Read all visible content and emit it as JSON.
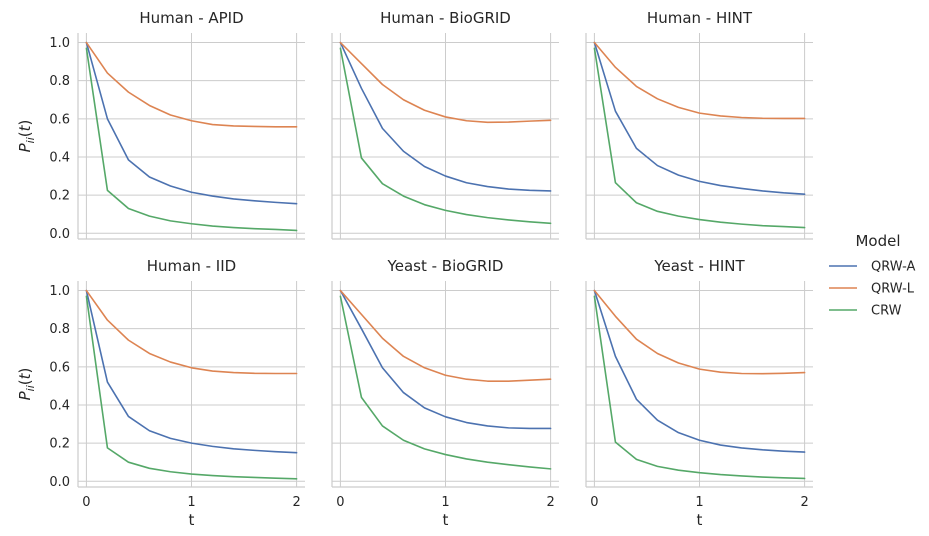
{
  "chart_data": {
    "type": "line",
    "legend": {
      "title": "Model",
      "placement": "right"
    },
    "xlabel": "t",
    "ylabel": "P_ii(t)",
    "xticks": [
      0,
      1,
      2
    ],
    "yticks": [
      "0.0",
      "0.2",
      "0.4",
      "0.6",
      "0.8",
      "1.0"
    ],
    "xlim": [
      -0.08,
      2.08
    ],
    "ylim": [
      -0.03,
      1.05
    ],
    "grid": true,
    "x": [
      0,
      0.2,
      0.4,
      0.6,
      0.8,
      1.0,
      1.2,
      1.4,
      1.6,
      1.8,
      2.0
    ],
    "series_styles": [
      {
        "name": "QRW-A",
        "color": "#4c72b0"
      },
      {
        "name": "QRW-L",
        "color": "#dd8452"
      },
      {
        "name": "CRW",
        "color": "#55a868"
      }
    ],
    "panels": [
      {
        "title": "Human - APID",
        "series": [
          {
            "name": "QRW-A",
            "values": [
              1.0,
              0.6,
              0.385,
              0.295,
              0.248,
              0.215,
              0.195,
              0.18,
              0.17,
              0.162,
              0.155
            ]
          },
          {
            "name": "QRW-L",
            "values": [
              1.0,
              0.84,
              0.74,
              0.67,
              0.62,
              0.59,
              0.57,
              0.563,
              0.56,
              0.558,
              0.558
            ]
          },
          {
            "name": "CRW",
            "values": [
              0.97,
              0.225,
              0.13,
              0.09,
              0.065,
              0.05,
              0.038,
              0.03,
              0.024,
              0.02,
              0.015
            ]
          }
        ]
      },
      {
        "title": "Human - BioGRID",
        "series": [
          {
            "name": "QRW-A",
            "values": [
              1.0,
              0.76,
              0.55,
              0.43,
              0.35,
              0.3,
              0.265,
              0.245,
              0.232,
              0.225,
              0.222
            ]
          },
          {
            "name": "QRW-L",
            "values": [
              1.0,
              0.89,
              0.78,
              0.7,
              0.645,
              0.61,
              0.59,
              0.582,
              0.583,
              0.588,
              0.592
            ]
          },
          {
            "name": "CRW",
            "values": [
              0.97,
              0.395,
              0.26,
              0.195,
              0.15,
              0.12,
              0.098,
              0.082,
              0.07,
              0.06,
              0.052
            ]
          }
        ]
      },
      {
        "title": "Human - HINT",
        "series": [
          {
            "name": "QRW-A",
            "values": [
              1.0,
              0.64,
              0.445,
              0.355,
              0.305,
              0.272,
              0.25,
              0.235,
              0.222,
              0.212,
              0.205
            ]
          },
          {
            "name": "QRW-L",
            "values": [
              1.0,
              0.87,
              0.77,
              0.705,
              0.66,
              0.63,
              0.615,
              0.607,
              0.603,
              0.602,
              0.602
            ]
          },
          {
            "name": "CRW",
            "values": [
              0.97,
              0.265,
              0.16,
              0.115,
              0.09,
              0.072,
              0.058,
              0.048,
              0.04,
              0.035,
              0.03
            ]
          }
        ]
      },
      {
        "title": "Human - IID",
        "series": [
          {
            "name": "QRW-A",
            "values": [
              1.0,
              0.52,
              0.34,
              0.265,
              0.225,
              0.2,
              0.183,
              0.17,
              0.162,
              0.155,
              0.15
            ]
          },
          {
            "name": "QRW-L",
            "values": [
              1.0,
              0.845,
              0.74,
              0.67,
              0.625,
              0.595,
              0.578,
              0.57,
              0.566,
              0.565,
              0.565
            ]
          },
          {
            "name": "CRW",
            "values": [
              0.97,
              0.175,
              0.1,
              0.068,
              0.05,
              0.038,
              0.03,
              0.024,
              0.02,
              0.016,
              0.013
            ]
          }
        ]
      },
      {
        "title": "Yeast - BioGRID",
        "series": [
          {
            "name": "QRW-A",
            "values": [
              1.0,
              0.8,
              0.595,
              0.465,
              0.385,
              0.338,
              0.308,
              0.29,
              0.28,
              0.277,
              0.277
            ]
          },
          {
            "name": "QRW-L",
            "values": [
              1.0,
              0.875,
              0.75,
              0.655,
              0.595,
              0.556,
              0.535,
              0.525,
              0.525,
              0.53,
              0.535
            ]
          },
          {
            "name": "CRW",
            "values": [
              0.97,
              0.44,
              0.29,
              0.215,
              0.17,
              0.14,
              0.117,
              0.1,
              0.087,
              0.075,
              0.065
            ]
          }
        ]
      },
      {
        "title": "Yeast - HINT",
        "series": [
          {
            "name": "QRW-A",
            "values": [
              1.0,
              0.655,
              0.43,
              0.32,
              0.255,
              0.215,
              0.19,
              0.175,
              0.165,
              0.158,
              0.153
            ]
          },
          {
            "name": "QRW-L",
            "values": [
              1.0,
              0.865,
              0.745,
              0.67,
              0.62,
              0.588,
              0.572,
              0.565,
              0.564,
              0.566,
              0.57
            ]
          },
          {
            "name": "CRW",
            "values": [
              0.97,
              0.205,
              0.115,
              0.078,
              0.058,
              0.045,
              0.035,
              0.028,
              0.022,
              0.018,
              0.015
            ]
          }
        ]
      }
    ]
  }
}
